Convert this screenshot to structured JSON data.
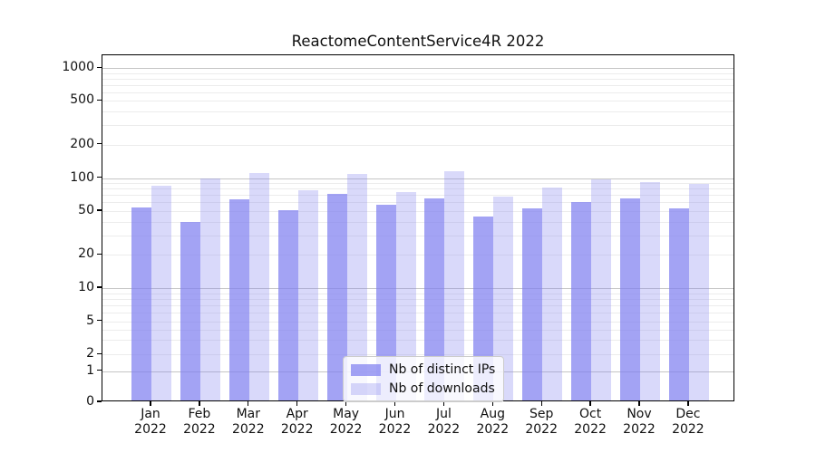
{
  "chart_data": {
    "type": "bar",
    "title": "ReactomeContentService4R 2022",
    "categories": [
      "Jan 2022",
      "Feb 2022",
      "Mar 2022",
      "Apr 2022",
      "May 2022",
      "Jun 2022",
      "Jul 2022",
      "Aug 2022",
      "Sep 2022",
      "Oct 2022",
      "Nov 2022",
      "Dec 2022"
    ],
    "series": [
      {
        "name": "Nb of distinct IPs",
        "color": "rgba(128,128,240,0.72)",
        "values": [
          54,
          40,
          64,
          51,
          72,
          57,
          65,
          45,
          53,
          61,
          65,
          53
        ]
      },
      {
        "name": "Nb of downloads",
        "color": "rgba(128,128,240,0.30)",
        "values": [
          85,
          100,
          110,
          77,
          109,
          74,
          115,
          68,
          82,
          98,
          92,
          89
        ]
      }
    ],
    "xlabel": "",
    "ylabel": "",
    "y_ticks": [
      1000,
      500,
      200,
      100,
      50,
      20,
      10,
      5,
      2,
      1,
      0
    ],
    "ylim": [
      0,
      1300
    ],
    "yscale": "log-like (compressed below 10, linear 0-1)",
    "grid": "horizontal major and minor gridlines, no vertical grid",
    "legend_position": "lower center inside plot"
  },
  "colors": {
    "bar_distinct_ips": "rgba(128,128,240,0.72)",
    "bar_downloads": "rgba(128,128,240,0.30)",
    "grid_major": "#c5c5c5",
    "grid_minor": "#ececec",
    "axis_frame": "#000000",
    "text": "#111111",
    "legend_background": "rgba(255,255,255,0.8)",
    "legend_border": "#cccccc"
  }
}
